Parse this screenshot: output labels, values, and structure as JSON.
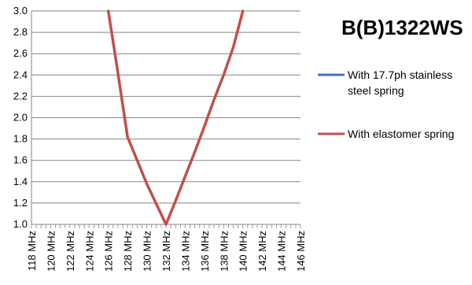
{
  "chart_data": {
    "type": "line",
    "title": "B(B)1322WS",
    "xlabel": "",
    "ylabel": "",
    "x_unit": "MHz",
    "x_ticks": [
      118,
      120,
      122,
      124,
      126,
      128,
      130,
      132,
      134,
      136,
      138,
      140,
      142,
      144,
      146
    ],
    "x_tick_labels": [
      "118 MHz",
      "120 MHz",
      "122 MHz",
      "124 MHz",
      "126 MHz",
      "128 MHz",
      "130 MHz",
      "132 MHz",
      "134 MHz",
      "136 MHz",
      "138 MHz",
      "140 MHz",
      "142 MHz",
      "144 MHz",
      "146 MHz"
    ],
    "xlim": [
      118,
      146
    ],
    "ylim": [
      1.0,
      3.0
    ],
    "y_ticks": [
      "1.0",
      "1.2",
      "1.4",
      "1.6",
      "1.8",
      "2.0",
      "2.2",
      "2.4",
      "2.6",
      "2.8",
      "3.0"
    ],
    "grid": "horizontal",
    "legend_position": "right",
    "series": [
      {
        "name": "With 17.7ph stainless steel spring",
        "name_lines": [
          "With 17.7ph stainless",
          "steel spring"
        ],
        "color": "#4472c4",
        "x": [
          126,
          127,
          128,
          129,
          130,
          131,
          132,
          133,
          134,
          135,
          136,
          137,
          138,
          139,
          140
        ],
        "y": [
          3.0,
          2.42,
          1.82,
          1.6,
          1.38,
          1.19,
          1.0,
          1.22,
          1.45,
          1.68,
          1.92,
          2.17,
          2.4,
          2.66,
          3.0
        ]
      },
      {
        "name": "With elastomer spring",
        "name_lines": [
          "With elastomer spring"
        ],
        "color": "#c0504d",
        "x": [
          126,
          127,
          128,
          129,
          130,
          131,
          132,
          133,
          134,
          135,
          136,
          137,
          138,
          139,
          140
        ],
        "y": [
          3.0,
          2.42,
          1.82,
          1.6,
          1.38,
          1.19,
          1.0,
          1.22,
          1.45,
          1.68,
          1.92,
          2.17,
          2.4,
          2.66,
          3.0
        ]
      }
    ]
  }
}
